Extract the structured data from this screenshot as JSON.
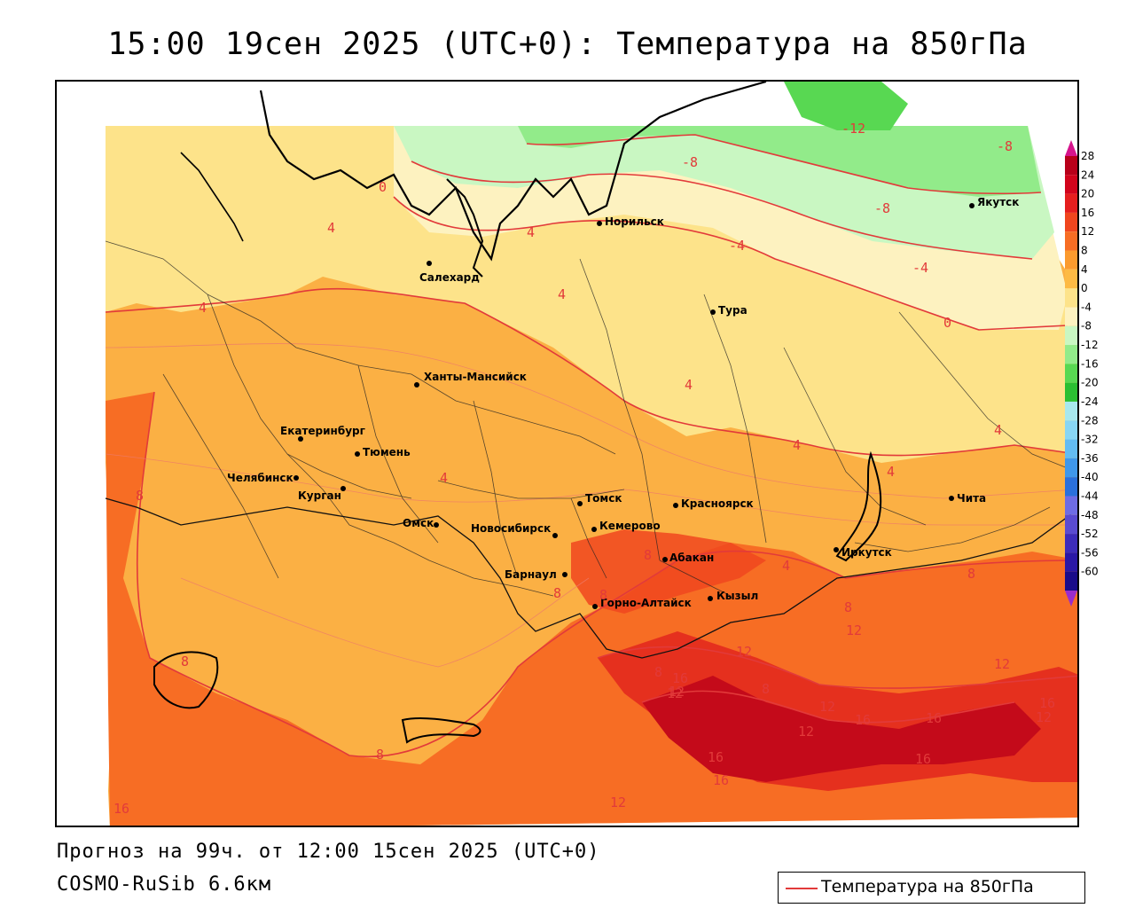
{
  "title": "15:00 19сен 2025 (UTC+0): Температура на 850гПа",
  "footer": {
    "forecast": "Прогноз на 99ч. от 12:00 15сен 2025 (UTC+0)",
    "model": "COSMO-RuSib 6.6км"
  },
  "legend": {
    "label": "Температура на 850гПа"
  },
  "colorbar": {
    "ticks": [
      "28",
      "24",
      "20",
      "16",
      "12",
      "8",
      "4",
      "0",
      "-4",
      "-8",
      "-12",
      "-16",
      "-20",
      "-24",
      "-28",
      "-32",
      "-36",
      "-40",
      "-44",
      "-48",
      "-52",
      "-56",
      "-60"
    ],
    "colors": [
      "#b8001a",
      "#d2041c",
      "#e51e1e",
      "#f0461e",
      "#f76d24",
      "#fb9a2e",
      "#fdba44",
      "#fde38a",
      "#fdf2c0",
      "#c9f7c2",
      "#92eb8a",
      "#58d852",
      "#2bbf32",
      "#a8e8ee",
      "#88d6f4",
      "#63bcf3",
      "#3f97ea",
      "#2a70dc",
      "#6e6ce4",
      "#5a4bd0",
      "#3d2cba",
      "#2a18a6",
      "#1a0c8a"
    ],
    "top_color": "#d6148c",
    "bottom_color": "#9a2ccc"
  },
  "cities": [
    {
      "name": "Якутск"
    },
    {
      "name": "Норильск"
    },
    {
      "name": "Салехард"
    },
    {
      "name": "Тура"
    },
    {
      "name": "Ханты-Мансийск"
    },
    {
      "name": "Екатеринбург"
    },
    {
      "name": "Тюмень"
    },
    {
      "name": "Челябинск"
    },
    {
      "name": "Курган"
    },
    {
      "name": "Омск"
    },
    {
      "name": "Новосибирск"
    },
    {
      "name": "Томск"
    },
    {
      "name": "Кемерово"
    },
    {
      "name": "Красноярск"
    },
    {
      "name": "Барнаул"
    },
    {
      "name": "Абакан"
    },
    {
      "name": "Горно-Алтайск"
    },
    {
      "name": "Кызыл"
    },
    {
      "name": "Иркутск"
    },
    {
      "name": "Чита"
    }
  ],
  "isolines": [
    "-12",
    "-8",
    "-8",
    "-8",
    "-4",
    "-4",
    "0",
    "0",
    "4",
    "4",
    "4",
    "4",
    "4",
    "4",
    "4",
    "4",
    "4",
    "8",
    "8",
    "8",
    "8",
    "8",
    "8",
    "8",
    "8",
    "8",
    "12",
    "12",
    "12",
    "12",
    "12",
    "12",
    "12",
    "16",
    "16",
    "16",
    "16",
    "16",
    "16",
    "16",
    "12",
    "8",
    "12",
    "16",
    "4"
  ]
}
